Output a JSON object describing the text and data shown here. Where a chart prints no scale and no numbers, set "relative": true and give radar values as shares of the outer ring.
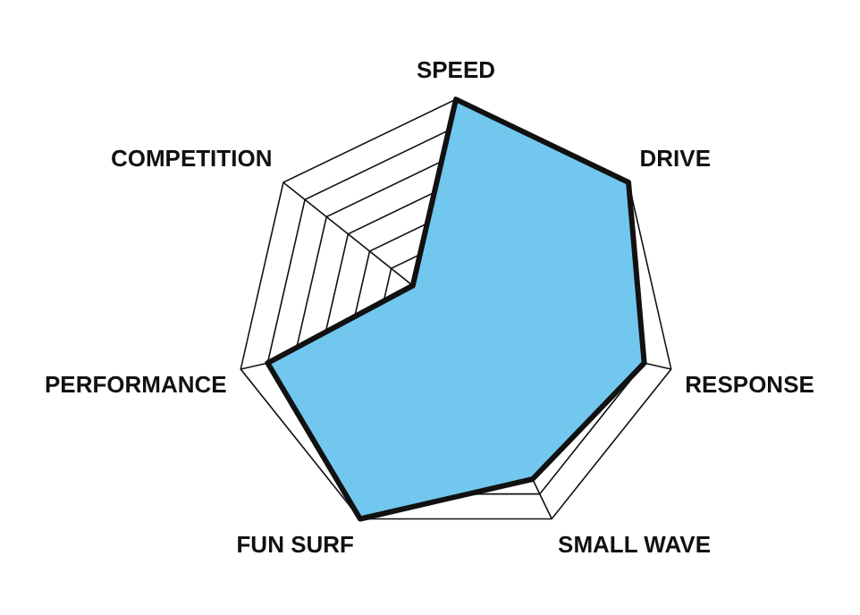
{
  "chart_data": {
    "type": "radar",
    "relative": true,
    "categories": [
      "SPEED",
      "DRIVE",
      "RESPONSE",
      "SMALL WAVE",
      "FUN SURF",
      "PERFORMANCE",
      "COMPETITION"
    ],
    "series": [
      {
        "color": "#72c7ef",
        "values": [
          1,
          1,
          0.875,
          0.8,
          1,
          0.875,
          0.25
        ]
      }
    ],
    "legend": false
  }
}
